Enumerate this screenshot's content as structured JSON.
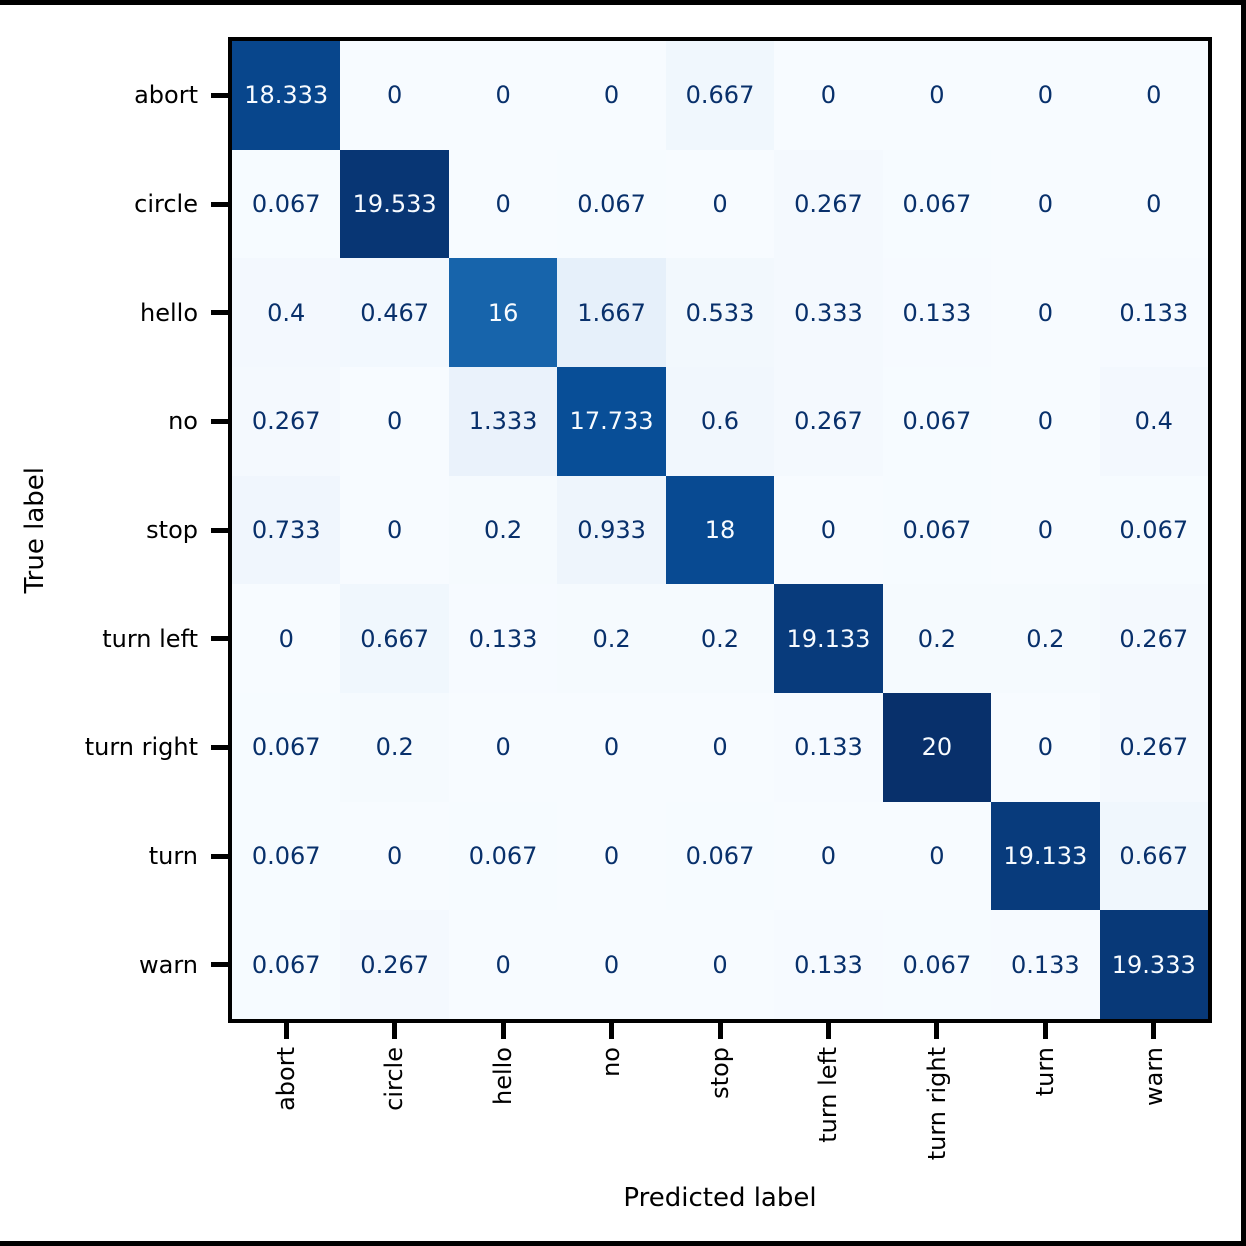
{
  "chart_data": {
    "type": "heatmap",
    "title": "",
    "xlabel": "Predicted label",
    "ylabel": "True label",
    "categories": [
      "abort",
      "circle",
      "hello",
      "no",
      "stop",
      "turn left",
      "turn right",
      "turn",
      "warn"
    ],
    "matrix": [
      [
        18.333,
        0,
        0,
        0,
        0.667,
        0,
        0,
        0,
        0
      ],
      [
        0.067,
        19.533,
        0,
        0.067,
        0,
        0.267,
        0.067,
        0,
        0
      ],
      [
        0.4,
        0.467,
        16,
        1.667,
        0.533,
        0.333,
        0.133,
        0,
        0.133
      ],
      [
        0.267,
        0,
        1.333,
        17.733,
        0.6,
        0.267,
        0.067,
        0,
        0.4
      ],
      [
        0.733,
        0,
        0.2,
        0.933,
        18,
        0,
        0.067,
        0,
        0.067
      ],
      [
        0,
        0.667,
        0.133,
        0.2,
        0.2,
        19.133,
        0.2,
        0.2,
        0.267
      ],
      [
        0.067,
        0.2,
        0,
        0,
        0,
        0.133,
        20,
        0,
        0.267
      ],
      [
        0.067,
        0,
        0.067,
        0,
        0.067,
        0,
        0,
        19.133,
        0.667
      ],
      [
        0.067,
        0.267,
        0,
        0,
        0,
        0.133,
        0.067,
        0.133,
        19.333
      ]
    ],
    "vmin": 0,
    "vmax": 20,
    "legend_position": "none",
    "grid": false,
    "colormap": {
      "name": "Blues",
      "anchors": [
        "#f7fbff",
        "#deebf7",
        "#c6dbef",
        "#9ecae1",
        "#6baed6",
        "#4292c6",
        "#2171b5",
        "#08519c",
        "#08306b"
      ]
    },
    "cell_text_colors": {
      "low": "#08306b",
      "high": "#f7fbff"
    },
    "cell_text_threshold": 10
  },
  "colors": {
    "frame": "#000000",
    "background": "#ffffff"
  }
}
